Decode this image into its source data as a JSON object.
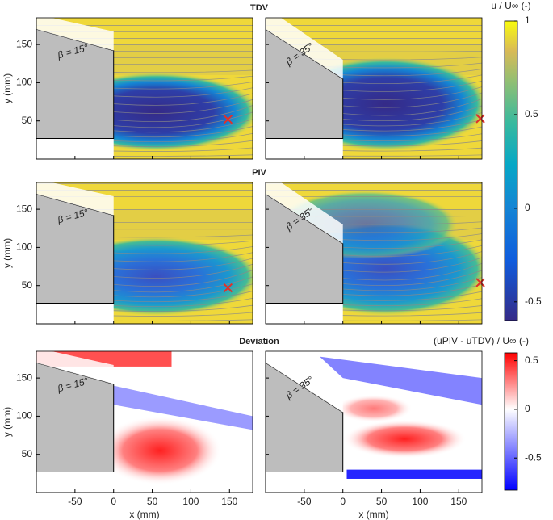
{
  "row_titles": [
    "TDV",
    "PIV",
    "Deviation"
  ],
  "colorbars": [
    {
      "label": "u / U∞ (-)",
      "clim": [
        -0.6,
        1
      ],
      "ticks": [
        -0.5,
        0,
        0.5,
        1
      ]
    },
    {
      "label": "(uPIV - uTDV) / U∞ (-)",
      "clim": [
        -0.83,
        0.58
      ],
      "ticks": [
        -0.5,
        0,
        0.5
      ]
    }
  ],
  "chart_data": [
    {
      "type": "contour",
      "field": "TDV",
      "annotation": "β = 15°",
      "ylabel": "y (mm)",
      "xlim": [
        -100,
        180
      ],
      "ylim": [
        0,
        185
      ],
      "xticks": [
        -50,
        0,
        50,
        100,
        150
      ],
      "yticks": [
        50,
        100,
        150
      ],
      "markers": [
        {
          "x": 148,
          "y": 52
        }
      ]
    },
    {
      "type": "contour",
      "field": "TDV",
      "annotation": "β = 35°",
      "xlim": [
        -100,
        180
      ],
      "ylim": [
        0,
        185
      ],
      "xticks": [
        -50,
        0,
        50,
        100,
        150
      ],
      "yticks": [
        50,
        100,
        150
      ],
      "markers": [
        {
          "x": 178,
          "y": 53
        }
      ]
    },
    {
      "type": "contour",
      "field": "PIV",
      "annotation": "β = 15°",
      "ylabel": "y (mm)",
      "xlim": [
        -100,
        180
      ],
      "ylim": [
        0,
        185
      ],
      "xticks": [
        -50,
        0,
        50,
        100,
        150
      ],
      "yticks": [
        50,
        100,
        150
      ],
      "markers": [
        {
          "x": 148,
          "y": 47
        }
      ]
    },
    {
      "type": "contour",
      "field": "PIV",
      "annotation": "β = 35°",
      "xlim": [
        -100,
        180
      ],
      "ylim": [
        0,
        185
      ],
      "xticks": [
        -50,
        0,
        50,
        100,
        150
      ],
      "yticks": [
        50,
        100,
        150
      ],
      "markers": [
        {
          "x": 178,
          "y": 54
        }
      ]
    },
    {
      "type": "contour",
      "field": "Deviation",
      "annotation": "β = 15°",
      "ylabel": "y (mm)",
      "xlabel": "x (mm)",
      "xlim": [
        -100,
        180
      ],
      "ylim": [
        0,
        185
      ],
      "xticks": [
        -50,
        0,
        50,
        100,
        150
      ],
      "yticks": [
        50,
        100,
        150
      ]
    },
    {
      "type": "contour",
      "field": "Deviation",
      "annotation": "β = 35°",
      "xlabel": "x (mm)",
      "xlim": [
        -100,
        180
      ],
      "ylim": [
        0,
        185
      ],
      "xticks": [
        -50,
        0,
        50,
        100,
        150
      ],
      "yticks": [
        50,
        100,
        150
      ]
    }
  ]
}
